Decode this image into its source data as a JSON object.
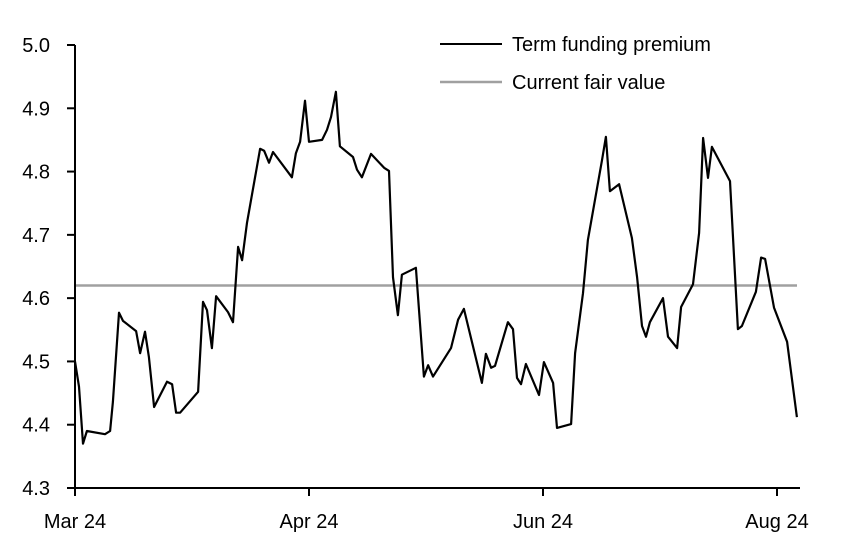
{
  "chart_data": {
    "type": "line",
    "title": "",
    "xlabel": "",
    "ylabel": "",
    "ylim": [
      4.3,
      5.0
    ],
    "yticks": [
      4.3,
      4.4,
      4.5,
      4.6,
      4.7,
      4.8,
      4.9,
      5.0
    ],
    "ytick_labels": [
      "4.3",
      "4.4",
      "4.5",
      "4.6",
      "4.7",
      "4.8",
      "4.9",
      "5.0"
    ],
    "xticks": [
      {
        "pos": 0,
        "label": "Mar 24"
      },
      {
        "pos": 1,
        "label": "Apr 24"
      },
      {
        "pos": 2,
        "label": "Jun 24"
      },
      {
        "pos": 3,
        "label": "Aug 24"
      }
    ],
    "xlim": [
      0,
      3.1
    ],
    "grid": false,
    "legend": {
      "placement": "top-right"
    },
    "series": [
      {
        "name": "Term funding premium",
        "color": "#000000",
        "points": [
          [
            0.0,
            4.5
          ],
          [
            0.017,
            4.46
          ],
          [
            0.034,
            4.37
          ],
          [
            0.051,
            4.39
          ],
          [
            0.128,
            4.385
          ],
          [
            0.15,
            4.39
          ],
          [
            0.162,
            4.436
          ],
          [
            0.188,
            4.577
          ],
          [
            0.205,
            4.564
          ],
          [
            0.261,
            4.548
          ],
          [
            0.278,
            4.513
          ],
          [
            0.299,
            4.547
          ],
          [
            0.316,
            4.507
          ],
          [
            0.338,
            4.428
          ],
          [
            0.393,
            4.468
          ],
          [
            0.415,
            4.464
          ],
          [
            0.432,
            4.419
          ],
          [
            0.449,
            4.419
          ],
          [
            0.526,
            4.452
          ],
          [
            0.547,
            4.594
          ],
          [
            0.564,
            4.581
          ],
          [
            0.585,
            4.521
          ],
          [
            0.603,
            4.603
          ],
          [
            0.654,
            4.578
          ],
          [
            0.675,
            4.562
          ],
          [
            0.697,
            4.681
          ],
          [
            0.714,
            4.66
          ],
          [
            0.735,
            4.719
          ],
          [
            0.791,
            4.836
          ],
          [
            0.808,
            4.833
          ],
          [
            0.829,
            4.814
          ],
          [
            0.846,
            4.831
          ],
          [
            0.927,
            4.791
          ],
          [
            0.944,
            4.829
          ],
          [
            0.962,
            4.847
          ],
          [
            0.983,
            4.912
          ],
          [
            1.0,
            4.847
          ],
          [
            1.056,
            4.85
          ],
          [
            1.077,
            4.866
          ],
          [
            1.094,
            4.886
          ],
          [
            1.115,
            4.926
          ],
          [
            1.132,
            4.84
          ],
          [
            1.188,
            4.823
          ],
          [
            1.205,
            4.803
          ],
          [
            1.226,
            4.791
          ],
          [
            1.265,
            4.828
          ],
          [
            1.321,
            4.806
          ],
          [
            1.342,
            4.801
          ],
          [
            1.359,
            4.633
          ],
          [
            1.38,
            4.573
          ],
          [
            1.397,
            4.637
          ],
          [
            1.457,
            4.648
          ],
          [
            1.491,
            4.476
          ],
          [
            1.509,
            4.494
          ],
          [
            1.53,
            4.476
          ],
          [
            1.607,
            4.521
          ],
          [
            1.637,
            4.566
          ],
          [
            1.662,
            4.583
          ],
          [
            1.739,
            4.466
          ],
          [
            1.756,
            4.512
          ],
          [
            1.778,
            4.49
          ],
          [
            1.795,
            4.493
          ],
          [
            1.85,
            4.562
          ],
          [
            1.872,
            4.551
          ],
          [
            1.889,
            4.474
          ],
          [
            1.906,
            4.464
          ],
          [
            1.927,
            4.496
          ],
          [
            1.983,
            4.447
          ],
          [
            2.004,
            4.499
          ],
          [
            2.043,
            4.466
          ],
          [
            2.06,
            4.395
          ],
          [
            2.12,
            4.401
          ],
          [
            2.137,
            4.513
          ],
          [
            2.171,
            4.608
          ],
          [
            2.192,
            4.692
          ],
          [
            2.252,
            4.818
          ],
          [
            2.269,
            4.855
          ],
          [
            2.286,
            4.769
          ],
          [
            2.325,
            4.78
          ],
          [
            2.38,
            4.695
          ],
          [
            2.402,
            4.633
          ],
          [
            2.423,
            4.556
          ],
          [
            2.44,
            4.539
          ],
          [
            2.457,
            4.562
          ],
          [
            2.513,
            4.6
          ],
          [
            2.534,
            4.539
          ],
          [
            2.573,
            4.521
          ],
          [
            2.59,
            4.586
          ],
          [
            2.641,
            4.622
          ],
          [
            2.667,
            4.703
          ],
          [
            2.684,
            4.853
          ],
          [
            2.705,
            4.79
          ],
          [
            2.722,
            4.839
          ],
          [
            2.799,
            4.785
          ],
          [
            2.833,
            4.551
          ],
          [
            2.85,
            4.556
          ],
          [
            2.91,
            4.61
          ],
          [
            2.932,
            4.664
          ],
          [
            2.949,
            4.662
          ],
          [
            2.987,
            4.585
          ],
          [
            3.043,
            4.531
          ],
          [
            3.085,
            4.412
          ]
        ]
      },
      {
        "name": "Current fair value",
        "color": "#a0a0a0",
        "constant": 4.62
      }
    ]
  }
}
